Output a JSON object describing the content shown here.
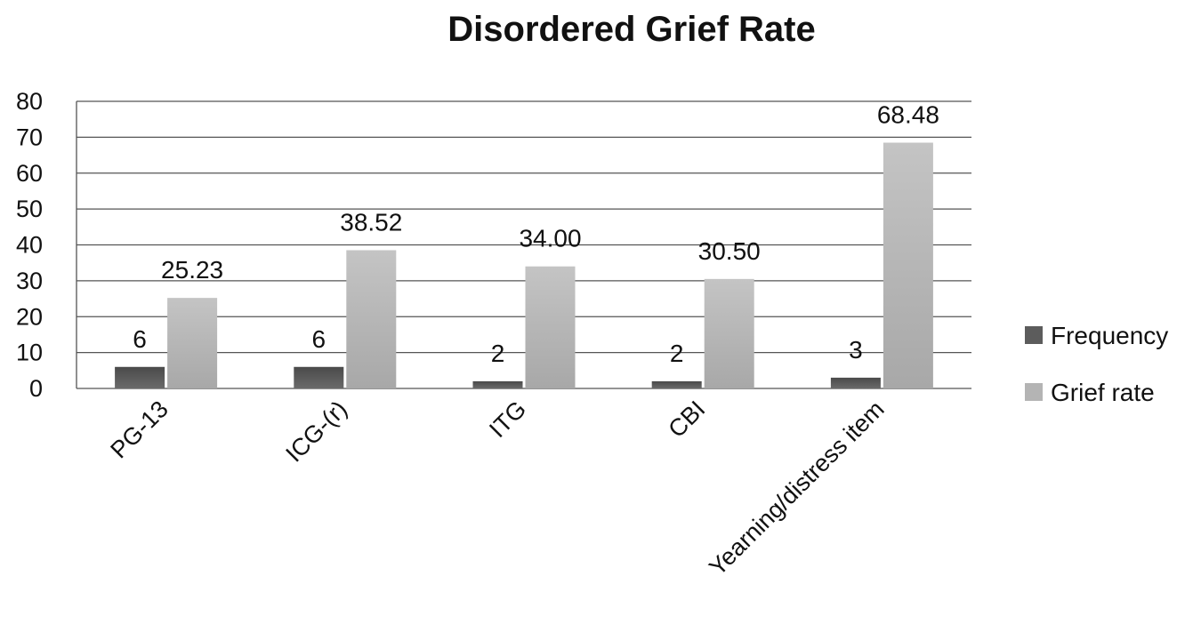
{
  "chart_data": {
    "type": "bar",
    "title": "Disordered Grief Rate",
    "xlabel": "",
    "ylabel": "",
    "categories": [
      "PG-13",
      "ICG-(r)",
      "ITG",
      "CBI",
      "Yearning/distress item"
    ],
    "series": [
      {
        "name": "Frequency",
        "color": "#5c5c5c",
        "values": [
          6,
          6,
          2,
          2,
          3
        ],
        "labels": [
          "6",
          "6",
          "2",
          "2",
          "3"
        ]
      },
      {
        "name": "Grief rate",
        "color": "#b4b4b4",
        "values": [
          25.23,
          38.52,
          34.0,
          30.5,
          68.48
        ],
        "labels": [
          "25.23",
          "38.52",
          "34.00",
          "30.50",
          "68.48"
        ]
      }
    ],
    "ylim": [
      0,
      80
    ],
    "yticks": [
      "0",
      "10",
      "20",
      "30",
      "40",
      "50",
      "60",
      "70",
      "80"
    ],
    "grid": true,
    "legend": "right"
  }
}
